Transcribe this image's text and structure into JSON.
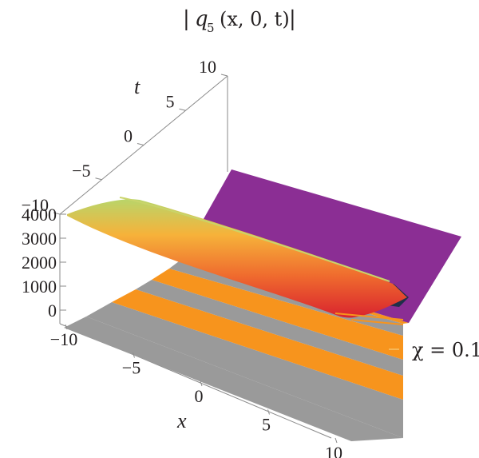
{
  "chart_data": {
    "type": "surface3d",
    "title": "| q₅ (x, 0, t) |",
    "title_parts": {
      "bar_left": "|",
      "q": "q",
      "sub": "5",
      "args": "(x, 0, t)",
      "bar_right": "|"
    },
    "xlabel": "x",
    "ylabel": "t",
    "zlabel": "",
    "x_ticks": [
      "−10",
      "−5",
      "0",
      "5",
      "10"
    ],
    "t_ticks": [
      "−10",
      "−5",
      "0",
      "5",
      "10"
    ],
    "z_ticks": [
      "0",
      "1000",
      "2000",
      "3000",
      "4000"
    ],
    "xlim": [
      -10,
      10
    ],
    "tlim": [
      -10,
      10
    ],
    "zlim": [
      0,
      4000
    ],
    "annotation": "χ = 0.1",
    "peak_value": 4000,
    "colors": {
      "plateau": "#8b2e94",
      "stripe_orange": "#f7941d",
      "stripe_gray": "#9a9a9a",
      "ridge_high": "#e84c2c",
      "ridge_mid": "#f5b335",
      "ridge_low": "#7cc47a",
      "shadow": "#1f2f4a"
    }
  }
}
